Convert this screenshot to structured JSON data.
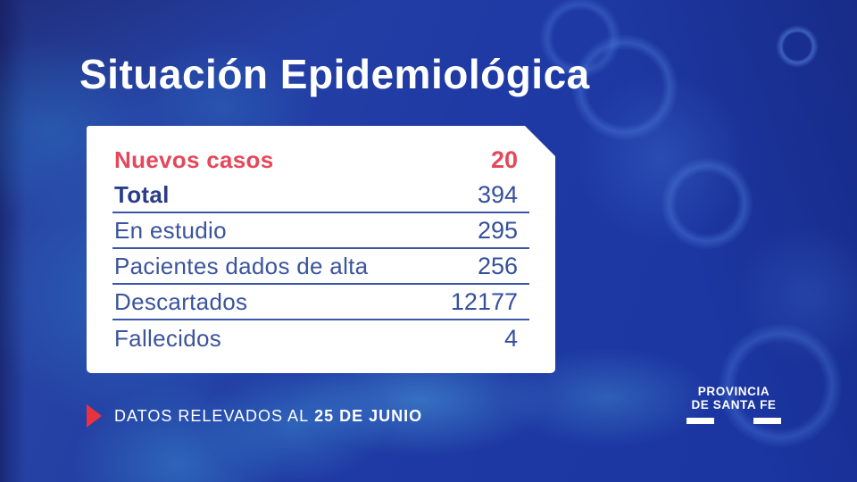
{
  "title": "Situación Epidemiológica",
  "card": {
    "rows": [
      {
        "label": "Nuevos casos",
        "value": "20"
      },
      {
        "label": "Total",
        "value": "394"
      },
      {
        "label": "En estudio",
        "value": "295"
      },
      {
        "label": "Pacientes dados de alta",
        "value": "256"
      },
      {
        "label": "Descartados",
        "value": "12177"
      },
      {
        "label": "Fallecidos",
        "value": "4"
      }
    ]
  },
  "footer": {
    "note_prefix": "DATOS RELEVADOS AL",
    "note_date": "25 DE JUNIO"
  },
  "logo": {
    "line1": "PROVINCIA",
    "line2": "DE SANTA FE"
  },
  "colors": {
    "background_blue": "#1e3aa3",
    "accent_red": "#e5485a",
    "triangle_red": "#e8323f",
    "navy_text": "#3a549e",
    "navy_bold": "#2b3c8a",
    "separator": "#3a57a5",
    "card_background": "#ffffff",
    "title_white": "#ffffff"
  },
  "chart_data": {
    "type": "table",
    "title": "Situación Epidemiológica",
    "categories": [
      "Nuevos casos",
      "Total",
      "En estudio",
      "Pacientes dados de alta",
      "Descartados",
      "Fallecidos"
    ],
    "values": [
      20,
      394,
      295,
      256,
      12177,
      4
    ],
    "annotations": [
      "DATOS RELEVADOS AL 25 DE JUNIO",
      "PROVINCIA DE SANTA FE"
    ],
    "highlight_row": "Nuevos casos"
  }
}
